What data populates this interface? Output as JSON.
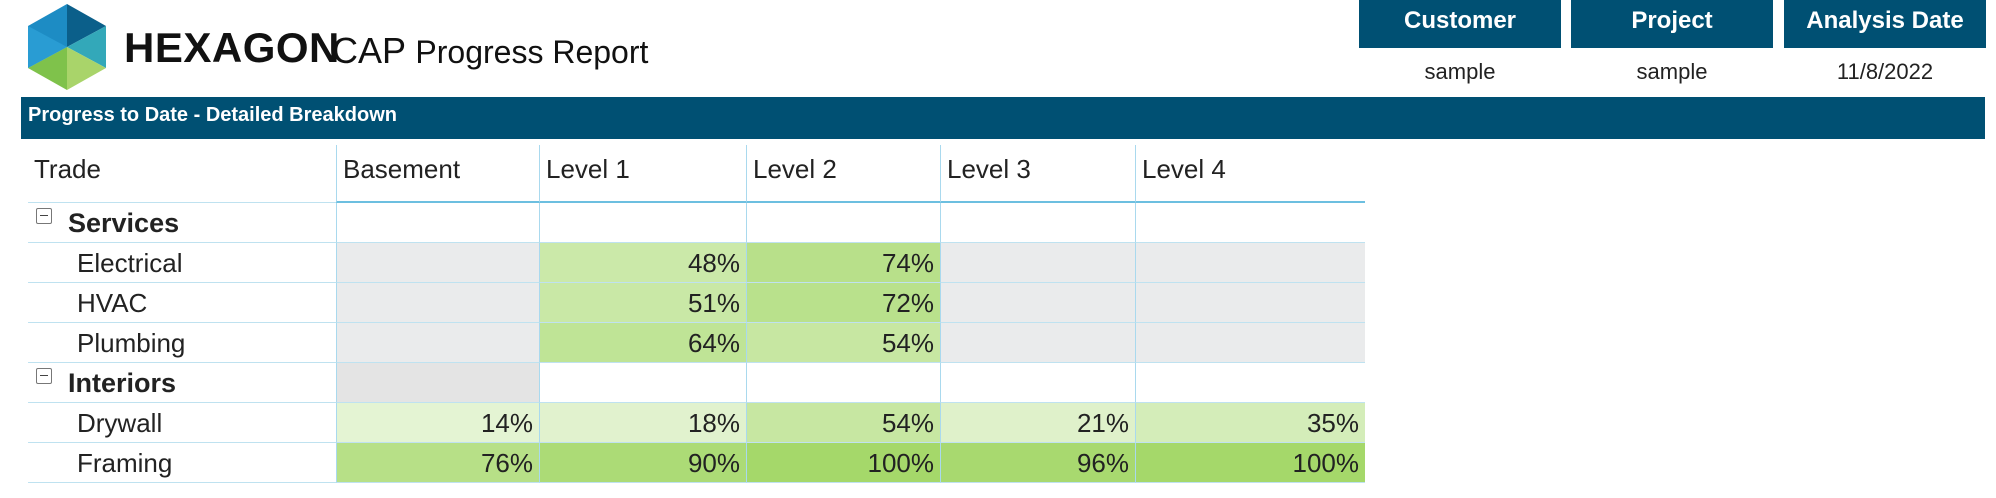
{
  "header": {
    "brand": "HEXAGON",
    "product": "CAP",
    "product_sub": "Progress Report",
    "brand_colors": {
      "blue": "#1d8cc4",
      "teal": "#33a8b9",
      "green": "#7fc24b",
      "dark": "#005073"
    }
  },
  "meta": [
    {
      "label": "Customer",
      "value": "sample"
    },
    {
      "label": "Project",
      "value": "sample"
    },
    {
      "label": "Analysis Date",
      "value": "11/8/2022"
    }
  ],
  "section_title": "Progress to Date - Detailed Breakdown",
  "table": {
    "columns": [
      "Trade",
      "Basement",
      "Level 1",
      "Level 2",
      "Level 3",
      "Level 4"
    ],
    "groups": [
      {
        "name": "Services",
        "toggle_icon": "collapse-icon",
        "rows": [
          {
            "trade": "Electrical",
            "values": [
              "",
              "48%",
              "74%",
              "",
              ""
            ],
            "fills": [
              null,
              0.48,
              0.74,
              null,
              null
            ]
          },
          {
            "trade": "HVAC",
            "values": [
              "",
              "51%",
              "72%",
              "",
              ""
            ],
            "fills": [
              null,
              0.51,
              0.72,
              null,
              null
            ]
          },
          {
            "trade": "Plumbing",
            "values": [
              "",
              "64%",
              "54%",
              "",
              ""
            ],
            "fills": [
              null,
              0.64,
              0.54,
              null,
              null
            ]
          }
        ]
      },
      {
        "name": "Interiors",
        "toggle_icon": "collapse-icon",
        "rows": [
          {
            "trade": "Drywall",
            "values": [
              "14%",
              "18%",
              "54%",
              "21%",
              "35%"
            ],
            "fills": [
              0.14,
              0.18,
              0.54,
              0.21,
              0.35
            ]
          },
          {
            "trade": "Framing",
            "values": [
              "76%",
              "90%",
              "100%",
              "96%",
              "100%"
            ],
            "fills": [
              0.76,
              0.9,
              1.0,
              0.96,
              1.0
            ]
          }
        ]
      }
    ]
  }
}
